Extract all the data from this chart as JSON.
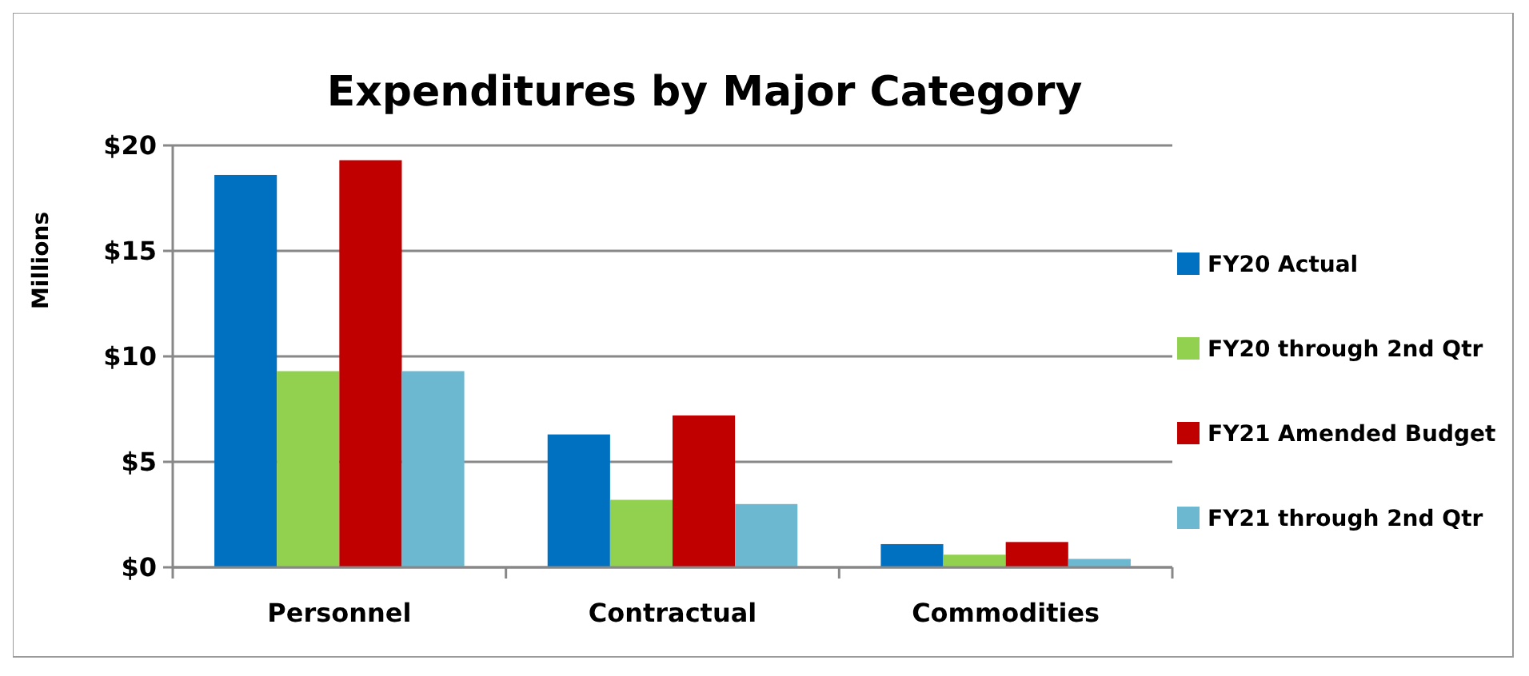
{
  "chart_data": {
    "type": "bar",
    "title": "Expenditures by Major Category",
    "ylabel": "Millions",
    "categories": [
      "Personnel",
      "Contractual",
      "Commodities"
    ],
    "series": [
      {
        "name": "FY20 Actual",
        "color": "#0070c0",
        "values": [
          18.6,
          6.3,
          1.1
        ]
      },
      {
        "name": "FY20 through 2nd Qtr",
        "color": "#92d050",
        "values": [
          9.3,
          3.2,
          0.6
        ]
      },
      {
        "name": "FY21 Amended Budget",
        "color": "#c00000",
        "values": [
          19.3,
          7.2,
          1.2
        ]
      },
      {
        "name": "FY21 through 2nd Qtr",
        "color": "#6bb8d0",
        "values": [
          9.3,
          3.0,
          0.4
        ]
      }
    ],
    "ylim": [
      0,
      20
    ],
    "yticks": [
      {
        "value": 0,
        "label": "$0"
      },
      {
        "value": 5,
        "label": "$5"
      },
      {
        "value": 10,
        "label": "$10"
      },
      {
        "value": 15,
        "label": "$15"
      },
      {
        "value": 20,
        "label": "$20"
      }
    ],
    "grid": "y",
    "legend": "right"
  }
}
